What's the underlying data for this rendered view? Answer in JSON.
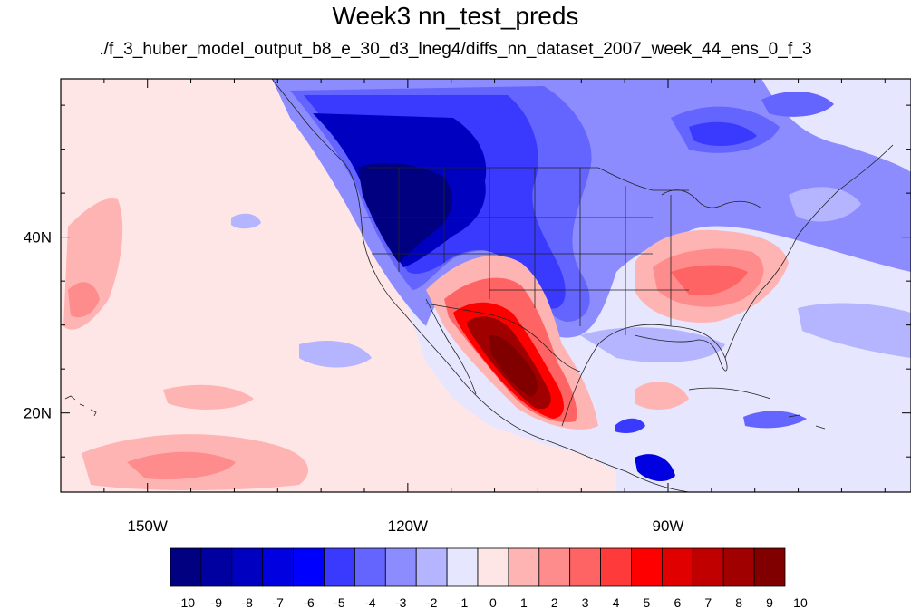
{
  "title": "Week3 nn_test_preds",
  "subtitle": "./f_3_huber_model_output_b8_e_30_d3_lneg4/diffs_nn_dataset_2007_week_44_ens_0_f_3",
  "map": {
    "lon_range": [
      -160,
      -62
    ],
    "lat_range": [
      11,
      58
    ],
    "x_ticks": [
      {
        "value": -150,
        "label": "150W"
      },
      {
        "value": -120,
        "label": "120W"
      },
      {
        "value": -90,
        "label": "90W"
      }
    ],
    "y_ticks": [
      {
        "value": 40,
        "label": "40N"
      },
      {
        "value": 20,
        "label": "20N"
      }
    ]
  },
  "colorbar": {
    "labels": [
      "-10",
      "-9",
      "-8",
      "-7",
      "-6",
      "-5",
      "-4",
      "-3",
      "-2",
      "-1",
      "0",
      "1",
      "2",
      "3",
      "4",
      "5",
      "6",
      "7",
      "8",
      "9",
      "10"
    ],
    "colors": [
      "#000080",
      "#0000a0",
      "#0000c0",
      "#0000e0",
      "#0000ff",
      "#3a3aff",
      "#6464ff",
      "#8c8cff",
      "#b4b4ff",
      "#e6e6ff",
      "#ffe6e6",
      "#ffb4b4",
      "#ff8c8c",
      "#ff6464",
      "#ff3a3a",
      "#ff0000",
      "#e00000",
      "#c00000",
      "#a00000",
      "#800000"
    ]
  }
}
